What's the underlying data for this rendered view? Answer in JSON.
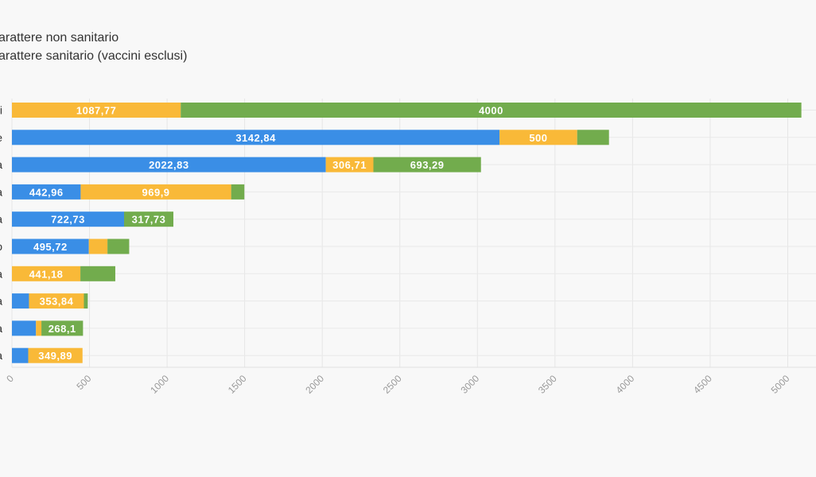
{
  "legend": {
    "items": [
      {
        "label": "carattere non sanitario",
        "color": "#f9b938"
      },
      {
        "label": "carattere sanitario (vaccini esclusi)",
        "color": "#72ac4d"
      }
    ]
  },
  "chart_data": {
    "type": "bar",
    "orientation": "horizontal",
    "stacked": true,
    "title": "",
    "xlabel": "",
    "ylabel": "",
    "xlim": [
      0,
      5100
    ],
    "xticks": [
      0,
      500,
      1000,
      1500,
      2000,
      2500,
      3000,
      3500,
      4000,
      4500,
      5000
    ],
    "grid": true,
    "legend_position": "top-left",
    "categories_visible_suffix": [
      "i",
      "e",
      "a",
      "a",
      "a",
      "o",
      "a",
      "a",
      "a",
      "a"
    ],
    "series": [
      {
        "color": "#3a8ee6",
        "values": [
          0,
          3142.84,
          2022.83,
          442.96,
          722.73,
          495.72,
          0,
          110,
          155,
          105
        ],
        "labels": [
          "",
          "3142,84",
          "2022,83",
          "442,96",
          "722,73",
          "495,72",
          "",
          "",
          "",
          ""
        ]
      },
      {
        "name": "carattere non sanitario",
        "color": "#f9b938",
        "values": [
          1087.77,
          500,
          306.71,
          969.9,
          0,
          120,
          441.18,
          353.84,
          35,
          349.89
        ],
        "labels": [
          "1087,77",
          "500",
          "306,71",
          "969,9",
          "",
          "",
          "441,18",
          "353,84",
          "",
          "349,89"
        ]
      },
      {
        "name": "carattere sanitario (vaccini esclusi)",
        "color": "#72ac4d",
        "values": [
          4000,
          205,
          693.29,
          85,
          317.73,
          140,
          225,
          25,
          268.1,
          0
        ],
        "labels": [
          "4000",
          "",
          "693,29",
          "",
          "317,73",
          "",
          "",
          "",
          "268,1",
          ""
        ]
      }
    ]
  }
}
